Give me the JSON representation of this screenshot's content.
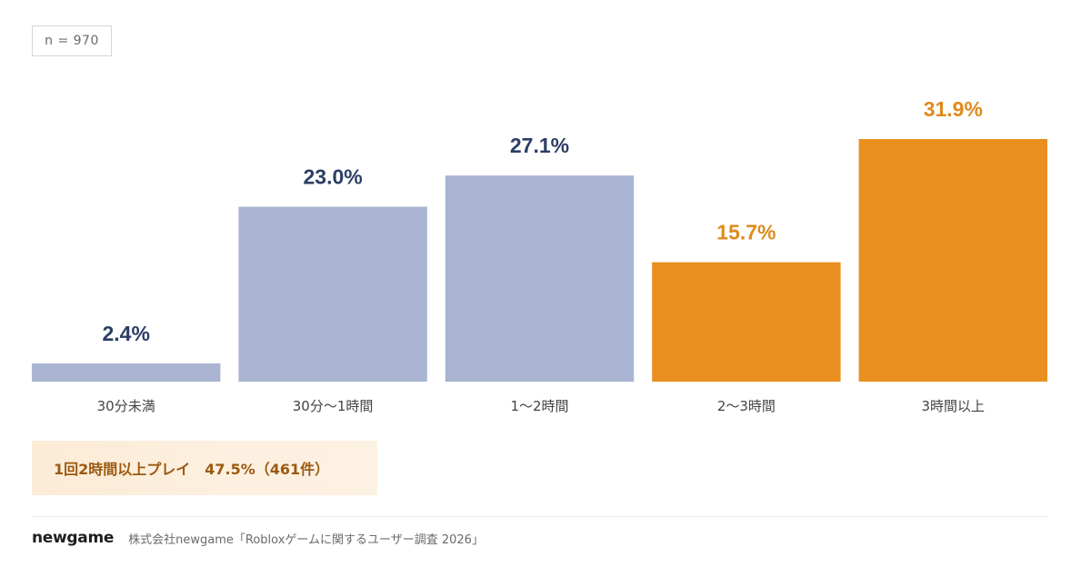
{
  "sample_size": "n = 970",
  "chart_data": {
    "type": "bar",
    "categories": [
      "30分未満",
      "30分〜1時間",
      "1〜2時間",
      "2〜3時間",
      "3時間以上"
    ],
    "values": [
      2.4,
      23.0,
      27.1,
      15.7,
      31.9
    ],
    "value_labels": [
      "2.4%",
      "23.0%",
      "27.1%",
      "15.7%",
      "31.9%"
    ],
    "ylim": [
      0,
      31.9
    ],
    "grid": false,
    "colors": {
      "base_bar": "#a8b4d1",
      "highlight_bar": "#e98f1f",
      "base_label": "#2c3e66",
      "highlight_label": "#e08a1c"
    },
    "highlighted": [
      false,
      false,
      false,
      true,
      true
    ]
  },
  "highlight": {
    "text": "1回2時間以上プレイ　47.5%（461件）"
  },
  "footer": {
    "logo": "newgame",
    "source": "株式会社newgame「Robloxゲームに関するユーザー調査 2026」"
  }
}
